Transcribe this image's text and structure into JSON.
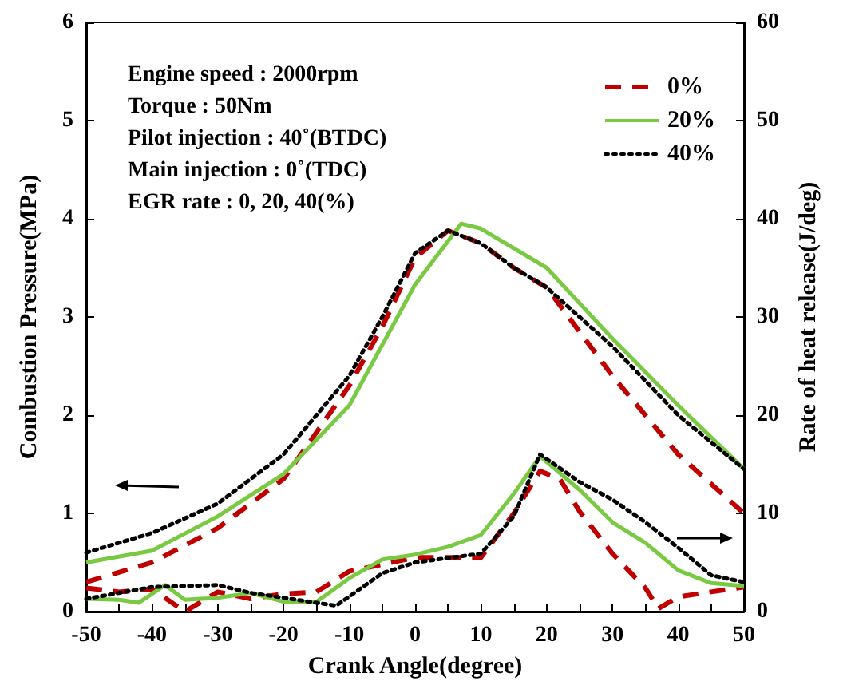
{
  "chart_data": {
    "type": "line",
    "xlabel": "Crank Angle(degree)",
    "ylabel": "Combustion Pressure(MPa)",
    "y2label": "Rate of heat release(J/deg)",
    "annotations": [
      "Engine speed : 2000rpm",
      "Torque : 50Nm",
      "Pilot injection : 40˚(BTDC)",
      "Main injection : 0˚(TDC)",
      "EGR rate : 0, 20, 40(%)"
    ],
    "xlim": [
      -50,
      50
    ],
    "xticks": [
      -50,
      {
        "value": -45,
        "label": null
      },
      -40,
      {
        "value": -35,
        "label": null
      },
      -30,
      {
        "value": -25,
        "label": null
      },
      -20,
      {
        "value": -15,
        "label": null
      },
      -10,
      {
        "value": -5,
        "label": null
      },
      0,
      {
        "value": 5,
        "label": null
      },
      10,
      {
        "value": 15,
        "label": null
      },
      20,
      {
        "value": 25,
        "label": null
      },
      30,
      {
        "value": 35,
        "label": null
      },
      40,
      {
        "value": 45,
        "label": null
      },
      50
    ],
    "ylim": [
      0,
      6
    ],
    "yticks": [
      0,
      1,
      2,
      3,
      4,
      5,
      6
    ],
    "y2lim": [
      0,
      60
    ],
    "y2ticks": [
      0,
      10,
      20,
      30,
      40,
      50,
      60
    ],
    "grid": false,
    "legend": "top right",
    "marker": "none",
    "series": [
      {
        "name": "0%",
        "color": "#c00000",
        "line_style": "dashed",
        "x": [
          -50,
          -40,
          -30,
          -20,
          -10,
          -5,
          0,
          5,
          10,
          15,
          20,
          30,
          40,
          50
        ],
        "values": [
          0.3,
          0.5,
          0.85,
          1.35,
          2.3,
          2.9,
          3.6,
          3.88,
          3.75,
          3.5,
          3.3,
          2.4,
          1.6,
          1.0
        ]
      },
      {
        "name": "20%",
        "color": "#7ac943",
        "line_style": "solid",
        "x": [
          -50,
          -40,
          -30,
          -20,
          -10,
          0,
          7,
          10,
          20,
          30,
          40,
          50
        ],
        "values": [
          0.5,
          0.62,
          0.97,
          1.4,
          2.1,
          3.33,
          3.95,
          3.9,
          3.5,
          2.78,
          2.1,
          1.45
        ]
      },
      {
        "name": "40%",
        "color": "#000000",
        "line_style": "dotted",
        "x": [
          -50,
          -40,
          -30,
          -20,
          -10,
          -5,
          0,
          5,
          10,
          15,
          20,
          30,
          40,
          50
        ],
        "values": [
          0.6,
          0.8,
          1.1,
          1.6,
          2.4,
          3.0,
          3.65,
          3.88,
          3.75,
          3.5,
          3.3,
          2.7,
          2.0,
          1.45
        ]
      },
      {
        "axis": "y2",
        "color": "#c00000",
        "line_style": "dashed",
        "x": [
          -50,
          -45,
          -40,
          -35,
          -30,
          -25,
          -20,
          -15,
          -10,
          -5,
          0,
          10,
          15,
          19,
          22,
          25,
          30,
          35,
          37,
          40,
          45,
          50
        ],
        "values": [
          2.4,
          2,
          2.3,
          0,
          2,
          1.3,
          1.8,
          2,
          4.1,
          4.8,
          5.5,
          5.5,
          10,
          14.3,
          13.5,
          10.2,
          5.9,
          2.4,
          0.3,
          1.5,
          2,
          2.5
        ]
      },
      {
        "axis": "y2",
        "color": "#7ac943",
        "line_style": "solid",
        "x": [
          -50,
          -45,
          -42,
          -38,
          -35,
          -30,
          -25,
          -20,
          -15,
          -10,
          -5,
          0,
          5,
          10,
          15,
          19,
          25,
          30,
          35,
          40,
          45,
          50
        ],
        "values": [
          1.3,
          1.2,
          0.9,
          2.7,
          1.2,
          1.4,
          1.9,
          1,
          1,
          3.4,
          5.3,
          5.8,
          6.6,
          7.8,
          12,
          15.8,
          12.4,
          9.1,
          7,
          4.2,
          2.9,
          2.6
        ]
      },
      {
        "axis": "y2",
        "color": "#000000",
        "line_style": "dotted",
        "x": [
          -50,
          -40,
          -30,
          -25,
          -20,
          -15,
          -12,
          -5,
          0,
          10,
          15,
          19,
          25,
          30,
          35,
          40,
          45,
          50
        ],
        "values": [
          1.3,
          2.5,
          2.7,
          1.9,
          1.4,
          0.9,
          0.6,
          3.9,
          5,
          5.9,
          9.7,
          16,
          13.2,
          11.4,
          9.1,
          6.5,
          3.7,
          3
        ]
      }
    ]
  }
}
